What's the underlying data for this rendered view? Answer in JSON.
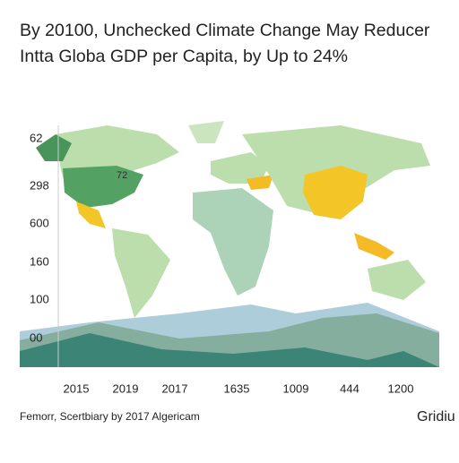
{
  "header": {
    "title_line_1": "By 20100, Unchecked Climate Change May Reducer",
    "title_line_2": "Intta Globa GDP per Capita, by Up to 24%"
  },
  "map_label": "72",
  "y_axis_labels": [
    "62",
    "298",
    "600",
    "160",
    "100",
    "00"
  ],
  "x_axis_labels": [
    "2015",
    "2019",
    "2017",
    "1635",
    "1009",
    "444",
    "1200"
  ],
  "footer": {
    "source": "Femorr, Scertbiary by 2017 Algericam",
    "logo": "Gridiu"
  }
}
